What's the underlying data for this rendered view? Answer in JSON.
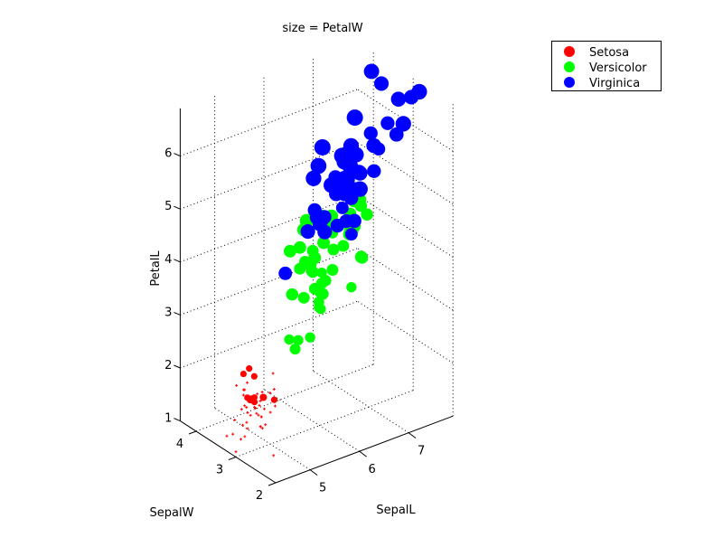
{
  "chart_data": {
    "type": "scatter",
    "projection": "3d",
    "title": "size = PetalW",
    "xlabel": "SepalL",
    "ylabel": "SepalW",
    "zlabel": "PetalL",
    "size_variable": "PetalW",
    "xlim": [
      4.3,
      7.9
    ],
    "ylim": [
      2,
      4.4
    ],
    "zlim": [
      1,
      6.9
    ],
    "xticks": [
      "5",
      "6",
      "7"
    ],
    "yticks": [
      "2",
      "3",
      "4"
    ],
    "zticks": [
      "1",
      "2",
      "3",
      "4",
      "5",
      "6"
    ],
    "grid": true,
    "legend_position": "top-right",
    "columns": [
      "SepalL",
      "SepalW",
      "PetalL",
      "PetalW"
    ],
    "series": [
      {
        "name": "Setosa",
        "color": "#ff0000",
        "points": [
          [
            5.1,
            3.5,
            1.4,
            0.2
          ],
          [
            4.9,
            3.0,
            1.4,
            0.2
          ],
          [
            4.7,
            3.2,
            1.3,
            0.2
          ],
          [
            4.6,
            3.1,
            1.5,
            0.2
          ],
          [
            5.0,
            3.6,
            1.4,
            0.2
          ],
          [
            5.4,
            3.9,
            1.7,
            0.4
          ],
          [
            4.6,
            3.4,
            1.4,
            0.3
          ],
          [
            5.0,
            3.4,
            1.5,
            0.2
          ],
          [
            4.4,
            2.9,
            1.4,
            0.2
          ],
          [
            4.9,
            3.1,
            1.5,
            0.1
          ],
          [
            5.4,
            3.7,
            1.5,
            0.2
          ],
          [
            4.8,
            3.4,
            1.6,
            0.2
          ],
          [
            4.8,
            3.0,
            1.4,
            0.1
          ],
          [
            4.3,
            3.0,
            1.1,
            0.1
          ],
          [
            5.8,
            4.0,
            1.2,
            0.2
          ],
          [
            5.7,
            4.4,
            1.5,
            0.4
          ],
          [
            5.4,
            3.9,
            1.3,
            0.4
          ],
          [
            5.1,
            3.5,
            1.4,
            0.3
          ],
          [
            5.7,
            3.8,
            1.7,
            0.3
          ],
          [
            5.1,
            3.8,
            1.5,
            0.3
          ],
          [
            5.4,
            3.4,
            1.7,
            0.2
          ],
          [
            5.1,
            3.7,
            1.5,
            0.4
          ],
          [
            4.6,
            3.6,
            1.0,
            0.2
          ],
          [
            5.1,
            3.3,
            1.7,
            0.5
          ],
          [
            4.8,
            3.4,
            1.9,
            0.2
          ],
          [
            5.0,
            3.0,
            1.6,
            0.2
          ],
          [
            5.0,
            3.4,
            1.6,
            0.4
          ],
          [
            5.2,
            3.5,
            1.5,
            0.2
          ],
          [
            5.2,
            3.4,
            1.4,
            0.2
          ],
          [
            4.7,
            3.2,
            1.6,
            0.2
          ],
          [
            4.8,
            3.1,
            1.6,
            0.2
          ],
          [
            5.4,
            3.4,
            1.5,
            0.4
          ],
          [
            5.2,
            4.1,
            1.5,
            0.1
          ],
          [
            5.5,
            4.2,
            1.4,
            0.2
          ],
          [
            4.9,
            3.1,
            1.5,
            0.2
          ],
          [
            5.0,
            3.2,
            1.2,
            0.2
          ],
          [
            5.5,
            3.5,
            1.3,
            0.2
          ],
          [
            4.9,
            3.6,
            1.4,
            0.1
          ],
          [
            4.4,
            3.0,
            1.3,
            0.2
          ],
          [
            5.1,
            3.4,
            1.5,
            0.2
          ],
          [
            5.0,
            3.5,
            1.3,
            0.3
          ],
          [
            4.5,
            2.3,
            1.3,
            0.3
          ],
          [
            4.4,
            3.2,
            1.3,
            0.2
          ],
          [
            5.0,
            3.5,
            1.6,
            0.6
          ],
          [
            5.1,
            3.8,
            1.9,
            0.4
          ],
          [
            4.8,
            3.0,
            1.4,
            0.3
          ],
          [
            5.1,
            3.8,
            1.6,
            0.2
          ],
          [
            4.6,
            3.2,
            1.4,
            0.2
          ],
          [
            5.3,
            3.7,
            1.5,
            0.2
          ],
          [
            5.0,
            3.3,
            1.4,
            0.2
          ]
        ]
      },
      {
        "name": "Versicolor",
        "color": "#00ff00",
        "points": [
          [
            7.0,
            3.2,
            4.7,
            1.4
          ],
          [
            6.4,
            3.2,
            4.5,
            1.5
          ],
          [
            6.9,
            3.1,
            4.9,
            1.5
          ],
          [
            5.5,
            2.3,
            4.0,
            1.3
          ],
          [
            6.5,
            2.8,
            4.6,
            1.5
          ],
          [
            5.7,
            2.8,
            4.5,
            1.3
          ],
          [
            6.3,
            3.3,
            4.7,
            1.6
          ],
          [
            4.9,
            2.4,
            3.3,
            1.0
          ],
          [
            6.6,
            2.9,
            4.6,
            1.3
          ],
          [
            5.2,
            2.7,
            3.9,
            1.4
          ],
          [
            5.0,
            2.0,
            3.5,
            1.0
          ],
          [
            5.9,
            3.0,
            4.2,
            1.5
          ],
          [
            6.0,
            2.2,
            4.0,
            1.0
          ],
          [
            6.1,
            2.9,
            4.7,
            1.4
          ],
          [
            5.6,
            2.9,
            3.6,
            1.3
          ],
          [
            6.7,
            3.1,
            4.4,
            1.4
          ],
          [
            5.6,
            3.0,
            4.5,
            1.5
          ],
          [
            5.8,
            2.7,
            4.1,
            1.0
          ],
          [
            6.2,
            2.2,
            4.5,
            1.5
          ],
          [
            5.6,
            2.5,
            3.9,
            1.1
          ],
          [
            5.9,
            3.2,
            4.8,
            1.8
          ],
          [
            6.1,
            2.8,
            4.0,
            1.3
          ],
          [
            6.3,
            2.5,
            4.9,
            1.5
          ],
          [
            6.1,
            2.8,
            4.7,
            1.2
          ],
          [
            6.4,
            2.9,
            4.3,
            1.3
          ],
          [
            6.6,
            3.0,
            4.4,
            1.4
          ],
          [
            6.8,
            2.8,
            4.8,
            1.4
          ],
          [
            6.7,
            3.0,
            5.0,
            1.7
          ],
          [
            6.0,
            2.9,
            4.5,
            1.5
          ],
          [
            5.7,
            2.6,
            3.5,
            1.0
          ],
          [
            5.5,
            2.4,
            3.8,
            1.1
          ],
          [
            5.5,
            2.4,
            3.7,
            1.0
          ],
          [
            5.8,
            2.7,
            3.9,
            1.2
          ],
          [
            6.0,
            2.7,
            5.1,
            1.6
          ],
          [
            5.4,
            3.0,
            4.5,
            1.5
          ],
          [
            6.0,
            3.4,
            4.5,
            1.6
          ],
          [
            6.7,
            3.1,
            4.7,
            1.5
          ],
          [
            6.3,
            2.3,
            4.4,
            1.3
          ],
          [
            5.6,
            3.0,
            4.1,
            1.3
          ],
          [
            5.5,
            2.5,
            4.0,
            1.3
          ],
          [
            5.5,
            2.6,
            4.4,
            1.2
          ],
          [
            6.1,
            3.0,
            4.6,
            1.4
          ],
          [
            5.8,
            2.6,
            4.0,
            1.2
          ],
          [
            5.0,
            2.3,
            3.3,
            1.0
          ],
          [
            5.6,
            2.7,
            4.2,
            1.3
          ],
          [
            5.7,
            3.0,
            4.2,
            1.2
          ],
          [
            5.7,
            2.9,
            4.2,
            1.3
          ],
          [
            6.2,
            2.9,
            4.3,
            1.3
          ],
          [
            5.1,
            2.5,
            3.0,
            1.1
          ],
          [
            5.7,
            2.8,
            4.1,
            1.3
          ]
        ]
      },
      {
        "name": "Virginica",
        "color": "#0000ff",
        "points": [
          [
            6.3,
            3.3,
            6.0,
            2.5
          ],
          [
            5.8,
            2.7,
            5.1,
            1.9
          ],
          [
            7.1,
            3.0,
            5.9,
            2.1
          ],
          [
            6.3,
            2.9,
            5.6,
            1.8
          ],
          [
            6.5,
            3.0,
            5.8,
            2.2
          ],
          [
            7.6,
            3.0,
            6.6,
            2.1
          ],
          [
            4.9,
            2.5,
            4.5,
            1.7
          ],
          [
            7.3,
            2.9,
            6.3,
            1.8
          ],
          [
            6.7,
            2.5,
            5.8,
            1.8
          ],
          [
            7.2,
            3.6,
            6.1,
            2.5
          ],
          [
            6.5,
            3.2,
            5.1,
            2.0
          ],
          [
            6.4,
            2.7,
            5.3,
            1.9
          ],
          [
            6.8,
            3.0,
            5.5,
            2.1
          ],
          [
            5.7,
            2.5,
            5.0,
            2.0
          ],
          [
            5.8,
            2.8,
            5.1,
            2.4
          ],
          [
            6.4,
            3.2,
            5.3,
            2.3
          ],
          [
            6.5,
            3.0,
            5.5,
            1.8
          ],
          [
            7.7,
            3.8,
            6.7,
            2.2
          ],
          [
            7.7,
            2.6,
            6.9,
            2.3
          ],
          [
            6.0,
            2.2,
            5.0,
            1.5
          ],
          [
            6.9,
            3.2,
            5.7,
            2.3
          ],
          [
            5.6,
            2.8,
            4.9,
            2.0
          ],
          [
            7.7,
            2.8,
            6.7,
            2.0
          ],
          [
            6.3,
            2.7,
            4.9,
            1.8
          ],
          [
            6.7,
            3.3,
            5.7,
            2.1
          ],
          [
            7.2,
            3.2,
            6.0,
            1.8
          ],
          [
            6.2,
            2.8,
            4.8,
            1.8
          ],
          [
            6.1,
            3.0,
            4.9,
            1.8
          ],
          [
            6.4,
            2.8,
            5.6,
            2.1
          ],
          [
            7.2,
            3.0,
            5.8,
            1.6
          ],
          [
            7.4,
            2.8,
            6.1,
            1.9
          ],
          [
            7.9,
            3.8,
            6.4,
            2.0
          ],
          [
            6.4,
            2.8,
            5.6,
            2.2
          ],
          [
            6.3,
            2.8,
            5.1,
            1.5
          ],
          [
            6.1,
            2.6,
            5.6,
            1.4
          ],
          [
            7.7,
            3.0,
            6.1,
            2.3
          ],
          [
            6.3,
            3.4,
            5.6,
            2.4
          ],
          [
            6.4,
            3.1,
            5.5,
            1.8
          ],
          [
            6.0,
            3.0,
            4.8,
            1.8
          ],
          [
            6.9,
            3.1,
            5.4,
            2.1
          ],
          [
            6.7,
            3.1,
            5.6,
            2.4
          ],
          [
            6.9,
            3.1,
            5.1,
            2.3
          ],
          [
            5.8,
            2.7,
            5.1,
            1.9
          ],
          [
            6.8,
            3.2,
            5.9,
            2.3
          ],
          [
            6.7,
            3.3,
            5.7,
            2.5
          ],
          [
            6.7,
            3.0,
            5.2,
            2.3
          ],
          [
            6.3,
            2.5,
            5.0,
            1.9
          ],
          [
            6.5,
            3.0,
            5.2,
            2.0
          ],
          [
            6.2,
            3.4,
            5.4,
            2.3
          ],
          [
            5.9,
            3.0,
            5.1,
            1.8
          ]
        ]
      }
    ]
  }
}
